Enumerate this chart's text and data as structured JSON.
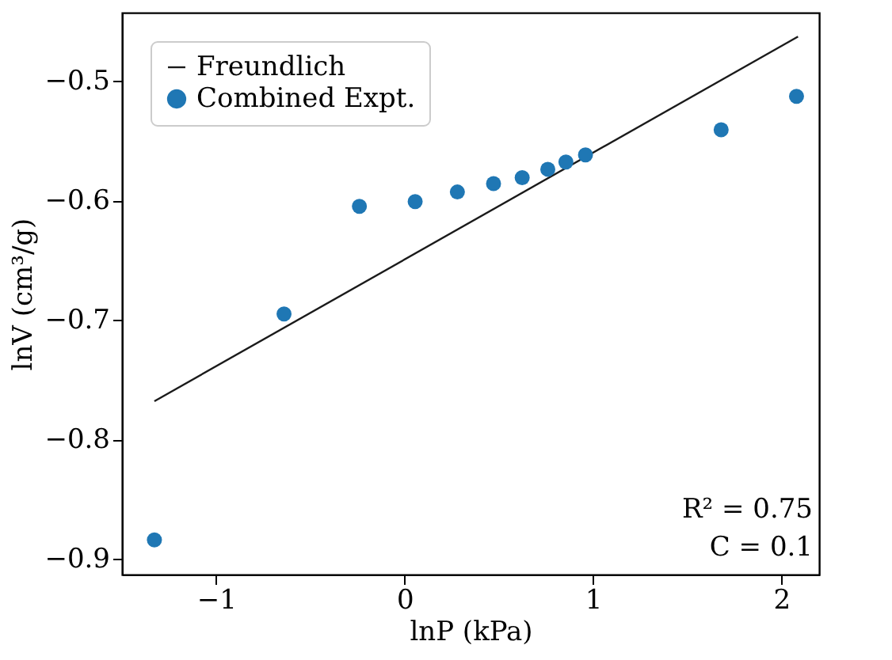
{
  "chart_data": {
    "type": "scatter",
    "xlabel": "lnP (kPa)",
    "ylabel": "lnV (cm³/g)",
    "xlim": [
      -1.5,
      2.2
    ],
    "xticks": [
      {
        "value": -1,
        "label": "−1"
      },
      0,
      1,
      2
    ],
    "ylim": [
      -0.913,
      -0.443
    ],
    "yticks": [
      {
        "value": -0.9,
        "label": "−0.9"
      },
      {
        "value": -0.8,
        "label": "−0.8"
      },
      {
        "value": -0.7,
        "label": "−0.7"
      },
      {
        "value": -0.6,
        "label": "−0.6"
      },
      {
        "value": -0.5,
        "label": "−0.5"
      }
    ],
    "grid": false,
    "legend": "top left",
    "series": [
      {
        "name": "Freundlich",
        "type": "line",
        "color": "#1a1a1a",
        "marker": "none",
        "line_style": "solid",
        "x": [
          -1.328,
          2.088
        ],
        "values": [
          -0.768,
          -0.463
        ]
      },
      {
        "name": "Combined Expt.",
        "color": "#1f77b4",
        "marker": "circle",
        "x": [
          -1.328,
          -0.64,
          -0.24,
          0.056,
          0.28,
          0.472,
          0.624,
          0.76,
          0.856,
          0.96,
          1.68,
          2.08
        ],
        "values": [
          -0.884,
          -0.695,
          -0.605,
          -0.601,
          -0.593,
          -0.586,
          -0.581,
          -0.574,
          -0.568,
          -0.562,
          -0.541,
          -0.513
        ]
      }
    ],
    "annotations": [
      "R² = 0.75",
      "C = 0.1"
    ]
  }
}
